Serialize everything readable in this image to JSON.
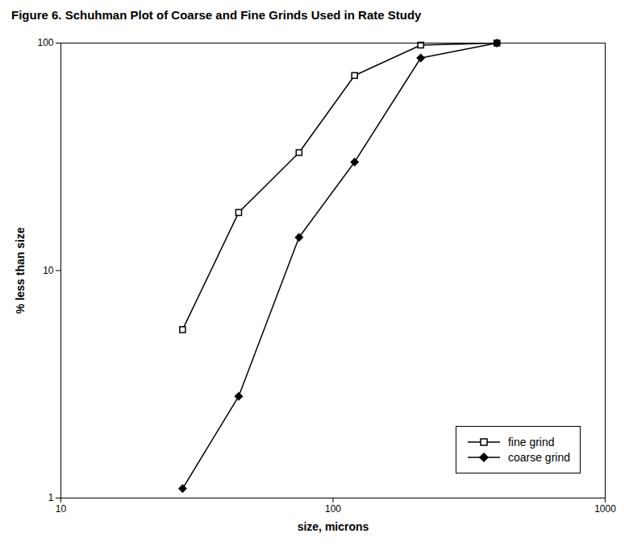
{
  "chart_data": {
    "type": "line",
    "title": "Figure 6.  Schuhman Plot of Coarse and Fine Grinds Used in Rate Study",
    "xlabel": "size, microns",
    "ylabel": "% less than size",
    "x": [
      28,
      45,
      75,
      120,
      210,
      400
    ],
    "series": [
      {
        "name": "fine grind",
        "color": "#000000",
        "marker": "square",
        "values": [
          5.5,
          18,
          33,
          72,
          98,
          100
        ]
      },
      {
        "name": "coarse grind",
        "color": "#000000",
        "marker": "diamond",
        "values": [
          1.1,
          2.8,
          14,
          30,
          86,
          100
        ]
      }
    ],
    "xlim": [
      10,
      1000
    ],
    "ylim": [
      1,
      100
    ],
    "xticks": [
      10,
      100,
      1000
    ],
    "yticks": [
      1,
      10,
      100
    ],
    "log": true,
    "grid": false,
    "legend": "lower right"
  }
}
